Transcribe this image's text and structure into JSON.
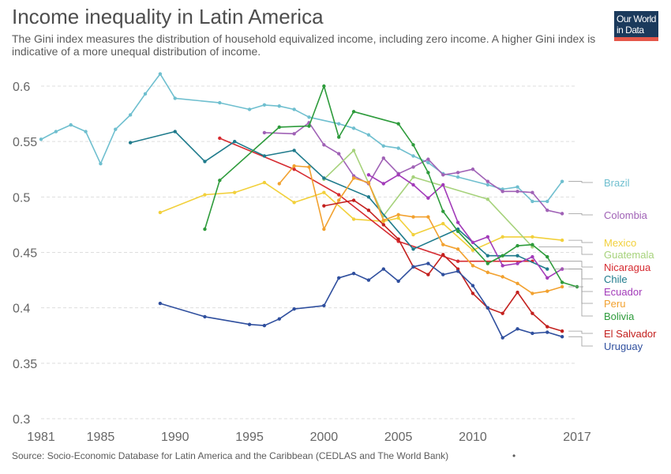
{
  "header": {
    "title": "Income inequality in Latin America",
    "subtitle": "The Gini index measures the distribution of household equivalized income, including zero income. A higher Gini index is indicative of a more unequal distribution of income."
  },
  "logo": {
    "line1": "Our World",
    "line2": "in Data"
  },
  "footer": {
    "source": "Source: Socio-Economic Database for Latin America and the Caribbean (CEDLAS and The World Bank)",
    "dot": "•"
  },
  "chart_data": {
    "type": "line",
    "title": "Income inequality in Latin America",
    "xlim": [
      1981,
      2017
    ],
    "ylim": [
      0.3,
      0.6
    ],
    "xticks": [
      1981,
      1985,
      1990,
      1995,
      2000,
      2005,
      2010,
      2017
    ],
    "xtick_labels": [
      "1981",
      "1985",
      "1990",
      "1995",
      "2000",
      "2005",
      "2010",
      "2017"
    ],
    "yticks": [
      0.3,
      0.35,
      0.4,
      0.45,
      0.5,
      0.55,
      0.6
    ],
    "ytick_labels": [
      "0.3",
      "0.35",
      "0.4",
      "0.45",
      "0.5",
      "0.55",
      "0.6"
    ],
    "grid": "horizontal dashed",
    "legend": "right, labels at line ends",
    "series": [
      {
        "name": "Brazil",
        "color": "#6fbfcf",
        "points": [
          [
            1981,
            0.552
          ],
          [
            1982,
            0.559
          ],
          [
            1983,
            0.565
          ],
          [
            1984,
            0.559
          ],
          [
            1985,
            0.53
          ],
          [
            1986,
            0.561
          ],
          [
            1987,
            0.574
          ],
          [
            1988,
            0.593
          ],
          [
            1989,
            0.611
          ],
          [
            1990,
            0.589
          ],
          [
            1993,
            0.585
          ],
          [
            1995,
            0.579
          ],
          [
            1996,
            0.583
          ],
          [
            1997,
            0.582
          ],
          [
            1998,
            0.579
          ],
          [
            1999,
            0.572
          ],
          [
            2001,
            0.566
          ],
          [
            2002,
            0.562
          ],
          [
            2003,
            0.556
          ],
          [
            2004,
            0.546
          ],
          [
            2005,
            0.544
          ],
          [
            2006,
            0.537
          ],
          [
            2007,
            0.531
          ],
          [
            2008,
            0.521
          ],
          [
            2009,
            0.518
          ],
          [
            2011,
            0.511
          ],
          [
            2012,
            0.507
          ],
          [
            2013,
            0.509
          ],
          [
            2014,
            0.496
          ],
          [
            2015,
            0.496
          ],
          [
            2016,
            0.514
          ]
        ]
      },
      {
        "name": "Colombia",
        "color": "#a062b6",
        "points": [
          [
            1996,
            0.558
          ],
          [
            1998,
            0.557
          ],
          [
            1999,
            0.567
          ],
          [
            2000,
            0.547
          ],
          [
            2001,
            0.539
          ],
          [
            2002,
            0.519
          ],
          [
            2003,
            0.512
          ],
          [
            2004,
            0.535
          ],
          [
            2005,
            0.521
          ],
          [
            2006,
            0.527
          ],
          [
            2007,
            0.534
          ],
          [
            2008,
            0.52
          ],
          [
            2009,
            0.522
          ],
          [
            2010,
            0.525
          ],
          [
            2011,
            0.514
          ],
          [
            2012,
            0.505
          ],
          [
            2013,
            0.505
          ],
          [
            2014,
            0.504
          ],
          [
            2015,
            0.488
          ],
          [
            2016,
            0.485
          ]
        ]
      },
      {
        "name": "Mexico",
        "color": "#f2d03b",
        "points": [
          [
            1989,
            0.486
          ],
          [
            1992,
            0.502
          ],
          [
            1994,
            0.504
          ],
          [
            1996,
            0.513
          ],
          [
            1998,
            0.495
          ],
          [
            2000,
            0.504
          ],
          [
            2002,
            0.48
          ],
          [
            2004,
            0.478
          ],
          [
            2005,
            0.481
          ],
          [
            2006,
            0.466
          ],
          [
            2008,
            0.476
          ],
          [
            2010,
            0.452
          ],
          [
            2012,
            0.464
          ],
          [
            2014,
            0.464
          ],
          [
            2016,
            0.461
          ]
        ]
      },
      {
        "name": "Guatemala",
        "color": "#a6d27b",
        "points": [
          [
            2000,
            0.516
          ],
          [
            2002,
            0.542
          ],
          [
            2004,
            0.483
          ],
          [
            2006,
            0.518
          ],
          [
            2011,
            0.498
          ],
          [
            2014,
            0.455
          ]
        ]
      },
      {
        "name": "Nicaragua",
        "color": "#d62b31",
        "points": [
          [
            1993,
            0.553
          ],
          [
            1998,
            0.525
          ],
          [
            2001,
            0.502
          ],
          [
            2005,
            0.46
          ],
          [
            2009,
            0.442
          ],
          [
            2014,
            0.442
          ]
        ]
      },
      {
        "name": "Chile",
        "color": "#1f7b8c",
        "points": [
          [
            1987,
            0.549
          ],
          [
            1990,
            0.559
          ],
          [
            1992,
            0.532
          ],
          [
            1994,
            0.55
          ],
          [
            1996,
            0.537
          ],
          [
            1998,
            0.542
          ],
          [
            2000,
            0.517
          ],
          [
            2003,
            0.5
          ],
          [
            2006,
            0.453
          ],
          [
            2009,
            0.471
          ],
          [
            2011,
            0.447
          ],
          [
            2013,
            0.447
          ],
          [
            2015,
            0.435
          ]
        ]
      },
      {
        "name": "Ecuador",
        "color": "#a23bb9",
        "points": [
          [
            2003,
            0.52
          ],
          [
            2004,
            0.512
          ],
          [
            2005,
            0.52
          ],
          [
            2006,
            0.511
          ],
          [
            2007,
            0.499
          ],
          [
            2008,
            0.511
          ],
          [
            2009,
            0.477
          ],
          [
            2010,
            0.459
          ],
          [
            2011,
            0.464
          ],
          [
            2012,
            0.438
          ],
          [
            2013,
            0.44
          ],
          [
            2014,
            0.446
          ],
          [
            2015,
            0.427
          ],
          [
            2016,
            0.435
          ]
        ]
      },
      {
        "name": "Peru",
        "color": "#f2a12f",
        "points": [
          [
            1997,
            0.512
          ],
          [
            1998,
            0.528
          ],
          [
            1999,
            0.527
          ],
          [
            2000,
            0.471
          ],
          [
            2001,
            0.497
          ],
          [
            2002,
            0.517
          ],
          [
            2003,
            0.513
          ],
          [
            2004,
            0.479
          ],
          [
            2005,
            0.484
          ],
          [
            2006,
            0.482
          ],
          [
            2007,
            0.482
          ],
          [
            2008,
            0.457
          ],
          [
            2009,
            0.453
          ],
          [
            2010,
            0.438
          ],
          [
            2011,
            0.432
          ],
          [
            2012,
            0.428
          ],
          [
            2013,
            0.422
          ],
          [
            2014,
            0.413
          ],
          [
            2015,
            0.415
          ],
          [
            2016,
            0.419
          ]
        ]
      },
      {
        "name": "Bolivia",
        "color": "#2d9b3b",
        "points": [
          [
            1992,
            0.471
          ],
          [
            1993,
            0.515
          ],
          [
            1997,
            0.563
          ],
          [
            1999,
            0.564
          ],
          [
            2000,
            0.6
          ],
          [
            2001,
            0.554
          ],
          [
            2002,
            0.577
          ],
          [
            2005,
            0.566
          ],
          [
            2006,
            0.547
          ],
          [
            2007,
            0.522
          ],
          [
            2008,
            0.487
          ],
          [
            2009,
            0.469
          ],
          [
            2011,
            0.44
          ],
          [
            2012,
            0.447
          ],
          [
            2013,
            0.456
          ],
          [
            2014,
            0.457
          ],
          [
            2015,
            0.446
          ],
          [
            2016,
            0.423
          ],
          [
            2017,
            0.419
          ]
        ]
      },
      {
        "name": "El Salvador",
        "color": "#c3201e",
        "points": [
          [
            2000,
            0.492
          ],
          [
            2002,
            0.497
          ],
          [
            2003,
            0.488
          ],
          [
            2004,
            0.475
          ],
          [
            2005,
            0.462
          ],
          [
            2006,
            0.437
          ],
          [
            2007,
            0.43
          ],
          [
            2008,
            0.448
          ],
          [
            2009,
            0.435
          ],
          [
            2010,
            0.413
          ],
          [
            2011,
            0.4
          ],
          [
            2012,
            0.395
          ],
          [
            2013,
            0.414
          ],
          [
            2014,
            0.395
          ],
          [
            2015,
            0.383
          ],
          [
            2016,
            0.379
          ]
        ]
      },
      {
        "name": "Uruguay",
        "color": "#2f4f9e",
        "points": [
          [
            1989,
            0.404
          ],
          [
            1992,
            0.392
          ],
          [
            1995,
            0.385
          ],
          [
            1996,
            0.384
          ],
          [
            1997,
            0.39
          ],
          [
            1998,
            0.399
          ],
          [
            2000,
            0.402
          ],
          [
            2001,
            0.427
          ],
          [
            2002,
            0.431
          ],
          [
            2003,
            0.425
          ],
          [
            2004,
            0.435
          ],
          [
            2005,
            0.424
          ],
          [
            2006,
            0.437
          ],
          [
            2007,
            0.44
          ],
          [
            2008,
            0.43
          ],
          [
            2009,
            0.433
          ],
          [
            2010,
            0.42
          ],
          [
            2011,
            0.4
          ],
          [
            2012,
            0.373
          ],
          [
            2013,
            0.381
          ],
          [
            2014,
            0.377
          ],
          [
            2015,
            0.378
          ],
          [
            2016,
            0.374
          ]
        ]
      }
    ]
  }
}
